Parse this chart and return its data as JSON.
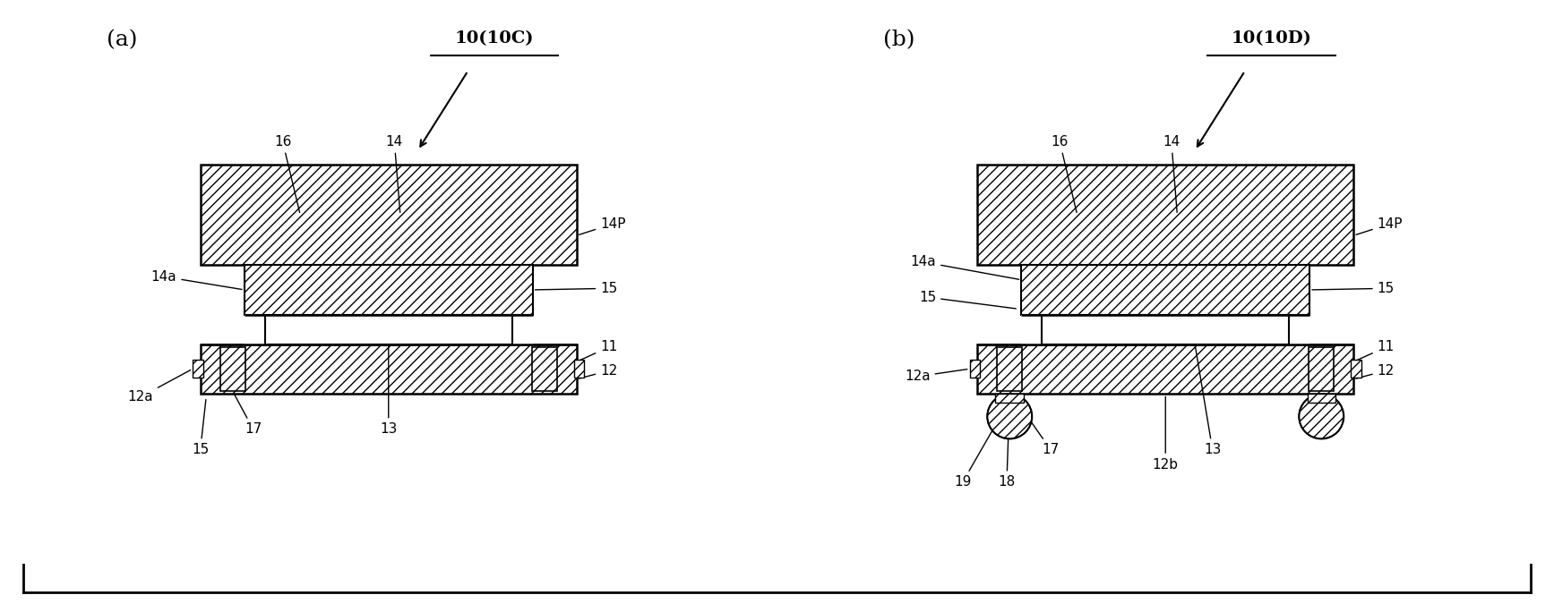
{
  "fig_width": 17.35,
  "fig_height": 6.84,
  "bg_color": "#ffffff",
  "panel_a_label": "(a)",
  "panel_b_label": "(b)",
  "ref_a": "10(10C)",
  "ref_b": "10(10D)"
}
